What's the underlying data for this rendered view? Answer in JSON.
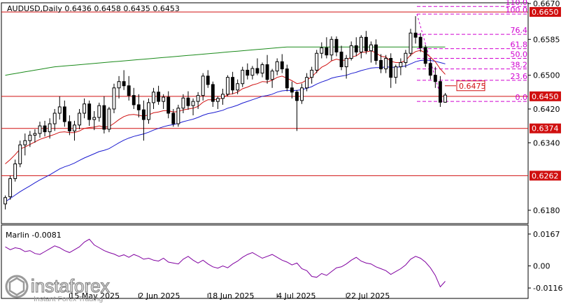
{
  "chart_data": {
    "type": "candlestick",
    "header": "AUDUSD,Daily  0.6436 0.6458 0.6435 0.6453",
    "symbol": "AUDUSD",
    "timeframe": "Daily",
    "ohlc_current": [
      0.6436,
      0.6458,
      0.6435,
      0.6453
    ],
    "price_axis": {
      "ylim": [
        0.615,
        0.667
      ],
      "ticks": [
        "0.6670",
        "0.6585",
        "0.6500",
        "0.6420",
        "0.6340",
        "0.6180"
      ]
    },
    "x_labels": [
      "15 May 2025",
      "2 Jun 2025",
      "18 Jun 2025",
      "4 Jul 2025",
      "22 Jul 2025"
    ],
    "levels": [
      {
        "label": "0.6650",
        "value": 0.665
      },
      {
        "label": "0.6450",
        "value": 0.645
      },
      {
        "label": "0.6374",
        "value": 0.6374
      },
      {
        "label": "0.6262",
        "value": 0.6262
      }
    ],
    "price_marker": {
      "label": "0.6475",
      "value": 0.6475
    },
    "fibonacci": [
      {
        "label": "110.0",
        "value": 0.6663
      },
      {
        "label": "100.0",
        "value": 0.6645
      },
      {
        "label": "76.4",
        "value": 0.6597
      },
      {
        "label": "61.8",
        "value": 0.6563
      },
      {
        "label": "50.0",
        "value": 0.654
      },
      {
        "label": "38.2",
        "value": 0.6515
      },
      {
        "label": "23.6",
        "value": 0.6488
      },
      {
        "label": "0.0",
        "value": 0.6438
      }
    ],
    "candles": [
      [
        0.6195,
        0.6215,
        0.6182,
        0.621
      ],
      [
        0.6212,
        0.6262,
        0.6205,
        0.6255
      ],
      [
        0.6255,
        0.63,
        0.6248,
        0.629
      ],
      [
        0.629,
        0.6345,
        0.6282,
        0.6335
      ],
      [
        0.6335,
        0.6362,
        0.631,
        0.6345
      ],
      [
        0.6345,
        0.6368,
        0.633,
        0.6358
      ],
      [
        0.6358,
        0.6372,
        0.634,
        0.6362
      ],
      [
        0.6362,
        0.639,
        0.6352,
        0.638
      ],
      [
        0.638,
        0.6392,
        0.6355,
        0.6366
      ],
      [
        0.6366,
        0.6398,
        0.635,
        0.6385
      ],
      [
        0.6385,
        0.642,
        0.6368,
        0.641
      ],
      [
        0.641,
        0.645,
        0.6395,
        0.6425
      ],
      [
        0.6425,
        0.644,
        0.6378,
        0.639
      ],
      [
        0.639,
        0.6405,
        0.6358,
        0.6368
      ],
      [
        0.6368,
        0.6392,
        0.6345,
        0.6382
      ],
      [
        0.6382,
        0.642,
        0.6372,
        0.641
      ],
      [
        0.641,
        0.6445,
        0.6398,
        0.6432
      ],
      [
        0.6432,
        0.644,
        0.638,
        0.6395
      ],
      [
        0.6395,
        0.6415,
        0.637,
        0.64
      ],
      [
        0.64,
        0.6435,
        0.639,
        0.6428
      ],
      [
        0.6428,
        0.645,
        0.6362,
        0.6372
      ],
      [
        0.6372,
        0.6425,
        0.6365,
        0.642
      ],
      [
        0.642,
        0.648,
        0.641,
        0.647
      ],
      [
        0.647,
        0.6498,
        0.6445,
        0.6485
      ],
      [
        0.6485,
        0.6512,
        0.6465,
        0.6475
      ],
      [
        0.6475,
        0.6498,
        0.644,
        0.6452
      ],
      [
        0.6452,
        0.647,
        0.642,
        0.643
      ],
      [
        0.643,
        0.6455,
        0.64,
        0.6418
      ],
      [
        0.6418,
        0.644,
        0.6345,
        0.6395
      ],
      [
        0.6395,
        0.6445,
        0.6385,
        0.6435
      ],
      [
        0.6435,
        0.647,
        0.642,
        0.646
      ],
      [
        0.646,
        0.6475,
        0.643,
        0.6438
      ],
      [
        0.6438,
        0.6455,
        0.642,
        0.6448
      ],
      [
        0.6448,
        0.6462,
        0.6398,
        0.641
      ],
      [
        0.641,
        0.642,
        0.6378,
        0.6385
      ],
      [
        0.6385,
        0.643,
        0.6378,
        0.6422
      ],
      [
        0.6422,
        0.6455,
        0.641,
        0.6446
      ],
      [
        0.6446,
        0.6462,
        0.6418,
        0.6428
      ],
      [
        0.6428,
        0.6445,
        0.6405,
        0.6438
      ],
      [
        0.6438,
        0.646,
        0.642,
        0.6452
      ],
      [
        0.6452,
        0.6505,
        0.644,
        0.6498
      ],
      [
        0.6498,
        0.6512,
        0.647,
        0.6478
      ],
      [
        0.6478,
        0.6485,
        0.6425,
        0.6438
      ],
      [
        0.6438,
        0.645,
        0.642,
        0.6445
      ],
      [
        0.6445,
        0.6468,
        0.643,
        0.6455
      ],
      [
        0.6455,
        0.65,
        0.645,
        0.6495
      ],
      [
        0.6495,
        0.6508,
        0.6455,
        0.6465
      ],
      [
        0.6465,
        0.649,
        0.6455,
        0.648
      ],
      [
        0.648,
        0.652,
        0.6472,
        0.6512
      ],
      [
        0.6512,
        0.6528,
        0.649,
        0.65
      ],
      [
        0.65,
        0.6522,
        0.649,
        0.6516
      ],
      [
        0.6516,
        0.654,
        0.65,
        0.6505
      ],
      [
        0.6505,
        0.653,
        0.6495,
        0.6525
      ],
      [
        0.6525,
        0.6548,
        0.648,
        0.649
      ],
      [
        0.649,
        0.6515,
        0.647,
        0.651
      ],
      [
        0.651,
        0.654,
        0.65,
        0.6532
      ],
      [
        0.6532,
        0.655,
        0.6505,
        0.6515
      ],
      [
        0.6515,
        0.6525,
        0.6462,
        0.647
      ],
      [
        0.647,
        0.6485,
        0.6445,
        0.646
      ],
      [
        0.646,
        0.6465,
        0.6368,
        0.644
      ],
      [
        0.644,
        0.648,
        0.6432,
        0.647
      ],
      [
        0.647,
        0.6505,
        0.6462,
        0.6495
      ],
      [
        0.6495,
        0.652,
        0.648,
        0.6512
      ],
      [
        0.6512,
        0.656,
        0.6505,
        0.6552
      ],
      [
        0.6552,
        0.6578,
        0.654,
        0.6565
      ],
      [
        0.6565,
        0.659,
        0.654,
        0.6548
      ],
      [
        0.6548,
        0.6592,
        0.6535,
        0.6585
      ],
      [
        0.6585,
        0.6592,
        0.6545,
        0.6555
      ],
      [
        0.6555,
        0.657,
        0.6512,
        0.652
      ],
      [
        0.652,
        0.6548,
        0.6492,
        0.654
      ],
      [
        0.654,
        0.658,
        0.6535,
        0.657
      ],
      [
        0.657,
        0.659,
        0.6545,
        0.6555
      ],
      [
        0.6555,
        0.6595,
        0.654,
        0.659
      ],
      [
        0.659,
        0.6605,
        0.655,
        0.6558
      ],
      [
        0.6558,
        0.658,
        0.653,
        0.6572
      ],
      [
        0.6572,
        0.6585,
        0.6525,
        0.6535
      ],
      [
        0.6535,
        0.655,
        0.6505,
        0.6515
      ],
      [
        0.6515,
        0.6548,
        0.6505,
        0.654
      ],
      [
        0.654,
        0.6552,
        0.647,
        0.6495
      ],
      [
        0.6495,
        0.6525,
        0.648,
        0.652
      ],
      [
        0.652,
        0.654,
        0.65,
        0.653
      ],
      [
        0.653,
        0.656,
        0.6518,
        0.6552
      ],
      [
        0.6552,
        0.661,
        0.6545,
        0.66
      ],
      [
        0.66,
        0.664,
        0.6575,
        0.659
      ],
      [
        0.659,
        0.66,
        0.6555,
        0.6565
      ],
      [
        0.6565,
        0.6572,
        0.652,
        0.6528
      ],
      [
        0.6528,
        0.654,
        0.649,
        0.65
      ],
      [
        0.65,
        0.652,
        0.647,
        0.6485
      ],
      [
        0.6485,
        0.6498,
        0.6425,
        0.6436
      ],
      [
        0.6436,
        0.6458,
        0.6435,
        0.6453
      ]
    ],
    "ma_red": [
      0.629,
      0.63,
      0.6312,
      0.6325,
      0.633,
      0.6336,
      0.6342,
      0.6348,
      0.6352,
      0.6356,
      0.636,
      0.6365,
      0.6366,
      0.6364,
      0.6364,
      0.6368,
      0.6374,
      0.6376,
      0.6377,
      0.638,
      0.6377,
      0.6378,
      0.6386,
      0.6395,
      0.6402,
      0.6406,
      0.6407,
      0.6405,
      0.6403,
      0.6406,
      0.6411,
      0.6413,
      0.6416,
      0.6416,
      0.6413,
      0.6414,
      0.6418,
      0.642,
      0.6422,
      0.6426,
      0.6436,
      0.6442,
      0.6442,
      0.6443,
      0.6446,
      0.6454,
      0.6456,
      0.646,
      0.6468,
      0.6472,
      0.6477,
      0.648,
      0.6485,
      0.6484,
      0.6488,
      0.6495,
      0.6498,
      0.6493,
      0.6487,
      0.648,
      0.6482,
      0.6489,
      0.6496,
      0.6508,
      0.6519,
      0.6525,
      0.6534,
      0.6538,
      0.6535,
      0.6536,
      0.6543,
      0.6546,
      0.6554,
      0.6555,
      0.6558,
      0.6553,
      0.6545,
      0.6543,
      0.6533,
      0.653,
      0.653,
      0.6535,
      0.6548,
      0.6556,
      0.6559,
      0.6553,
      0.6543,
      0.6532,
      0.6515,
      0.6502
    ],
    "ma_blue": [
      0.62,
      0.6208,
      0.6216,
      0.6224,
      0.6231,
      0.6238,
      0.6245,
      0.6252,
      0.6258,
      0.6264,
      0.6271,
      0.6278,
      0.6283,
      0.6287,
      0.6292,
      0.6298,
      0.6304,
      0.6309,
      0.6314,
      0.6319,
      0.6322,
      0.6326,
      0.6333,
      0.634,
      0.6346,
      0.6351,
      0.6355,
      0.6358,
      0.6361,
      0.6365,
      0.637,
      0.6374,
      0.6378,
      0.6381,
      0.6383,
      0.6386,
      0.639,
      0.6393,
      0.6396,
      0.64,
      0.6405,
      0.6409,
      0.6411,
      0.6414,
      0.6417,
      0.6422,
      0.6425,
      0.6429,
      0.6434,
      0.6438,
      0.6442,
      0.6446,
      0.645,
      0.6452,
      0.6455,
      0.646,
      0.6463,
      0.6464,
      0.6464,
      0.6464,
      0.6466,
      0.6469,
      0.6473,
      0.6479,
      0.6484,
      0.6488,
      0.6493,
      0.6496,
      0.6498,
      0.65,
      0.6504,
      0.6507,
      0.6511,
      0.6514,
      0.6517,
      0.6518,
      0.6518,
      0.652,
      0.6519,
      0.6519,
      0.652,
      0.6522,
      0.6527,
      0.6532,
      0.6535,
      0.6536,
      0.6535,
      0.6533,
      0.653,
      0.6527
    ],
    "ma_green": [
      0.65,
      0.6502,
      0.6504,
      0.6506,
      0.6508,
      0.651,
      0.6512,
      0.6514,
      0.6516,
      0.6518,
      0.652,
      0.6521,
      0.6522,
      0.6523,
      0.6524,
      0.6525,
      0.6526,
      0.6527,
      0.6528,
      0.6529,
      0.653,
      0.6531,
      0.6532,
      0.6533,
      0.6534,
      0.6535,
      0.6536,
      0.6537,
      0.6538,
      0.6539,
      0.654,
      0.6541,
      0.6542,
      0.6543,
      0.6544,
      0.6545,
      0.6546,
      0.6547,
      0.6548,
      0.6549,
      0.655,
      0.6551,
      0.6552,
      0.6553,
      0.6554,
      0.6555,
      0.6556,
      0.6557,
      0.6558,
      0.6559,
      0.656,
      0.6561,
      0.6562,
      0.6563,
      0.6564,
      0.6565,
      0.6566,
      0.6567,
      0.6567,
      0.6567,
      0.6567,
      0.6567,
      0.6567,
      0.6567,
      0.6567,
      0.6567,
      0.6567,
      0.6567,
      0.6567,
      0.6567,
      0.6567,
      0.6567,
      0.6567,
      0.6567,
      0.6567,
      0.6567,
      0.6567,
      0.6567,
      0.6567,
      0.6567,
      0.6567,
      0.6567,
      0.6567,
      0.6567,
      0.6567,
      0.6567,
      0.6567,
      0.6567,
      0.6567,
      0.6567
    ],
    "oscillator": {
      "name": "Marlin",
      "value_label": "Marlin -0.0081",
      "ylim": [
        -0.0145,
        0.0185
      ],
      "ticks": [
        "0.0167",
        "0.00",
        "-0.0116"
      ],
      "values": [
        0.01,
        0.0085,
        0.0095,
        0.009,
        0.0075,
        0.008,
        0.0065,
        0.006,
        0.0075,
        0.009,
        0.0105,
        0.0095,
        0.008,
        0.007,
        0.0085,
        0.01,
        0.0125,
        0.014,
        0.011,
        0.0095,
        0.008,
        0.007,
        0.0062,
        0.005,
        0.0058,
        0.0045,
        0.006,
        0.005,
        0.0035,
        0.004,
        0.003,
        0.0025,
        0.004,
        0.002,
        0.0015,
        0.001,
        0.0035,
        0.005,
        0.003,
        0.0015,
        0.003,
        0.001,
        -0.0005,
        -0.0012,
        0.0,
        -0.001,
        0.001,
        0.0025,
        0.0045,
        0.006,
        0.007,
        0.0055,
        0.004,
        0.005,
        0.006,
        0.0045,
        0.003,
        0.002,
        0.0005,
        0.0015,
        -0.0015,
        -0.0025,
        -0.0055,
        -0.006,
        -0.004,
        -0.005,
        -0.003,
        -0.001,
        -0.0005,
        0.001,
        0.003,
        0.0045,
        0.0025,
        0.0015,
        0.001,
        -0.0005,
        -0.0015,
        -0.0025,
        -0.0045,
        -0.003,
        -0.0015,
        0.0005,
        0.0035,
        0.005,
        0.004,
        0.002,
        -0.001,
        -0.005,
        -0.011,
        -0.0081
      ]
    }
  },
  "watermark": {
    "brand": "instaforex",
    "tagline": "Instant Forex Trading"
  }
}
